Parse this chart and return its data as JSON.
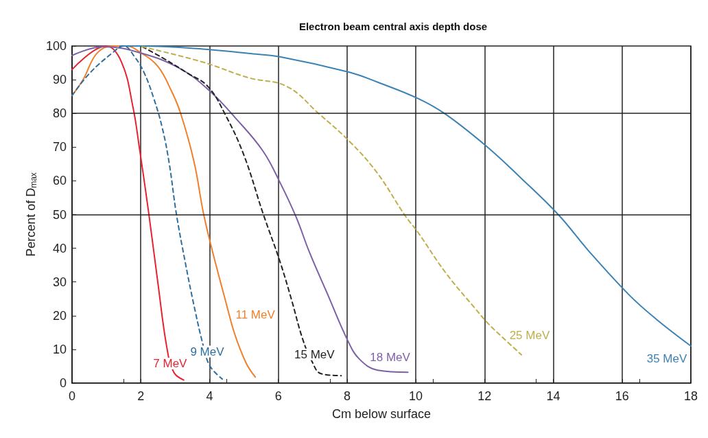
{
  "chart_data": {
    "type": "line",
    "title": "Electron beam central axis depth dose",
    "xlabel": "Cm below surface",
    "ylabel": "Percent of D$_{max}$",
    "xlim": [
      0,
      18
    ],
    "xticks": [
      0,
      2,
      4,
      6,
      8,
      10,
      12,
      14,
      16,
      18
    ],
    "ylim": [
      0,
      100
    ],
    "yticks": [
      0,
      10,
      20,
      30,
      40,
      50,
      60,
      70,
      80,
      90,
      100
    ],
    "grid": "x",
    "legend": false,
    "marker": "none",
    "ref_lines": [
      {
        "axis": "y",
        "value": 80
      },
      {
        "axis": "y",
        "value": 50
      }
    ],
    "series": [
      {
        "name": "7 MeV",
        "color": "#e8212e",
        "line_style": "solid",
        "x": [
          0,
          1.0,
          1.44,
          1.77,
          1.97,
          2.23,
          2.5,
          2.76,
          2.96,
          3.25
        ],
        "values": [
          93,
          100,
          95.2,
          82,
          69,
          50.5,
          29.5,
          10.4,
          3.2,
          0.9
        ]
      },
      {
        "name": "9 MeV",
        "color": "#2e6e9e",
        "line_style": "dashed",
        "x": [
          0,
          0.52,
          1.18,
          1.5,
          1.84,
          2.1,
          2.37,
          2.63,
          2.83,
          3.03,
          3.29,
          3.55,
          3.82,
          4.01,
          4.37
        ],
        "values": [
          85.3,
          92,
          98,
          100,
          96.5,
          92,
          84.7,
          75.5,
          65,
          50.5,
          36,
          22.9,
          11,
          5.1,
          1.2
        ]
      },
      {
        "name": "11 MeV",
        "color": "#f07f2a",
        "line_style": "solid",
        "x": [
          0,
          0.32,
          0.72,
          1.18,
          1.57,
          2.03,
          2.5,
          2.89,
          3.16,
          3.55,
          3.82,
          4.08,
          4.47,
          4.74,
          5.07,
          5.33
        ],
        "values": [
          85.3,
          90,
          97.8,
          100,
          100,
          97.8,
          93.9,
          86.7,
          80,
          65.6,
          50.5,
          39.3,
          24.2,
          14.3,
          5.8,
          1.8
        ]
      },
      {
        "name": "15 MeV",
        "color": "#222222",
        "line_style": "dashed",
        "x": [
          2.04,
          2.63,
          3.35,
          3.95,
          4.47,
          5.0,
          5.55,
          6.05,
          6.38,
          6.71,
          6.98,
          7.24,
          7.83
        ],
        "values": [
          99.8,
          96.5,
          92,
          88,
          79.4,
          67.6,
          50.5,
          36,
          24.9,
          13,
          6.4,
          2.8,
          2.2
        ]
      },
      {
        "name": "18 MeV",
        "color": "#7d5fa8",
        "line_style": "solid",
        "x": [
          0,
          0.92,
          2.04,
          3.16,
          4.0,
          4.74,
          5.55,
          6.05,
          6.52,
          6.91,
          7.44,
          8.03,
          8.36,
          8.89,
          9.77
        ],
        "values": [
          97.2,
          99.8,
          97.8,
          93.2,
          86.7,
          78.8,
          68.9,
          59.5,
          49.2,
          38.7,
          26.2,
          12.4,
          7.1,
          3.8,
          3.2
        ]
      },
      {
        "name": "25 MeV",
        "color": "#bfae4a",
        "line_style": "dashed",
        "x": [
          2.04,
          3.81,
          5.13,
          6.25,
          7.17,
          8.09,
          8.88,
          9.68,
          10.07,
          10.87,
          11.72,
          12.11,
          12.51,
          13.07
        ],
        "values": [
          99.8,
          95.2,
          90.6,
          88,
          80,
          71.5,
          62.3,
          49.8,
          44.6,
          32.7,
          22.2,
          17.6,
          13.7,
          8.4
        ]
      },
      {
        "name": "35 MeV",
        "color": "#3b82b4",
        "line_style": "solid",
        "x": [
          1.4,
          2.04,
          3.8,
          5.13,
          6.05,
          8.07,
          8.88,
          10.07,
          10.86,
          12.06,
          13.04,
          14.16,
          15.02,
          16.2,
          17.0,
          18
        ],
        "values": [
          100,
          100,
          99.1,
          97.8,
          96.8,
          92.2,
          89.3,
          84.4,
          79.8,
          70.2,
          61,
          49.8,
          39.3,
          26.2,
          18.9,
          11
        ]
      }
    ]
  }
}
